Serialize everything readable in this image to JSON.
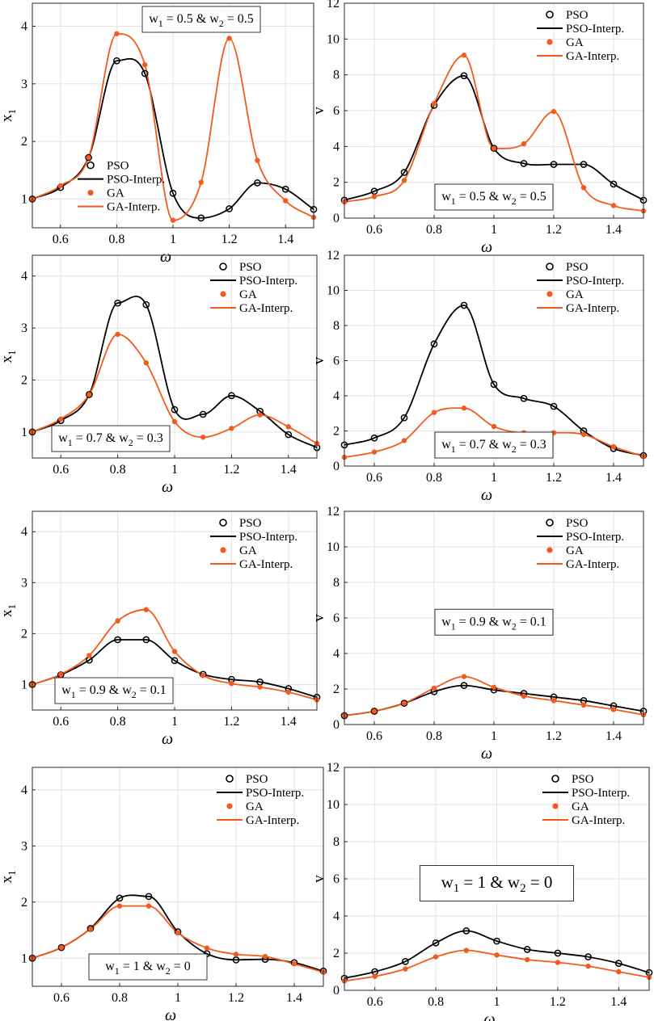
{
  "figure": {
    "colors": {
      "pso": "#000000",
      "ga": "#F25B1D",
      "grid": "#E3E3E3",
      "axis": "#262626"
    },
    "axis_label_x": "ω",
    "axis_label_x1": "x",
    "axis_label_x1_sub": "1",
    "axis_label_v": "v"
  },
  "chart_data": [
    {
      "type": "line",
      "ylabel": "x1",
      "xlabel": "ω",
      "xlim": [
        0.5,
        1.5
      ],
      "ylim": [
        0.5,
        4.4
      ],
      "xticks": [
        "0.6",
        "0.8",
        "1",
        "1.2",
        "1.4"
      ],
      "yticks": [
        "1",
        "2",
        "3",
        "4"
      ],
      "annotation": {
        "parts": [
          "w",
          "1",
          " = 0.5 & w",
          "2",
          " = 0.5"
        ],
        "position": "top-center"
      },
      "legend": {
        "position": "center-left",
        "entries": [
          "PSO",
          "PSO-Interp.",
          "GA",
          "GA-Interp."
        ]
      },
      "x": [
        0.5,
        0.6,
        0.7,
        0.8,
        0.9,
        1.0,
        1.1,
        1.2,
        1.3,
        1.4,
        1.5
      ],
      "series": [
        {
          "name": "PSO",
          "values": [
            1.0,
            1.2,
            1.72,
            3.4,
            3.18,
            1.1,
            0.67,
            0.83,
            1.28,
            1.17,
            0.82
          ]
        },
        {
          "name": "GA",
          "values": [
            1.0,
            1.23,
            1.72,
            3.87,
            3.33,
            0.63,
            1.29,
            3.79,
            1.67,
            0.97,
            0.68
          ]
        }
      ]
    },
    {
      "type": "line",
      "ylabel": "v",
      "xlabel": "ω",
      "xlim": [
        0.5,
        1.5
      ],
      "ylim": [
        0,
        12
      ],
      "xticks": [
        "0.6",
        "0.8",
        "1",
        "1.2",
        "1.4"
      ],
      "yticks": [
        "0",
        "2",
        "4",
        "6",
        "8",
        "10",
        "12"
      ],
      "annotation": {
        "parts": [
          "w",
          "1",
          " = 0.5 & w",
          "2",
          " = 0.5"
        ],
        "position": "bottom-center"
      },
      "legend": {
        "position": "top-right",
        "entries": [
          "PSO",
          "PSO-Interp.",
          "GA",
          "GA-Interp."
        ]
      },
      "x": [
        0.5,
        0.6,
        0.7,
        0.8,
        0.9,
        1.0,
        1.1,
        1.2,
        1.3,
        1.4,
        1.5
      ],
      "series": [
        {
          "name": "PSO",
          "values": [
            1.0,
            1.5,
            2.55,
            6.3,
            7.95,
            3.9,
            3.05,
            3.0,
            3.0,
            1.9,
            1.0
          ]
        },
        {
          "name": "GA",
          "values": [
            0.9,
            1.2,
            2.1,
            6.4,
            9.1,
            3.9,
            4.15,
            5.95,
            1.7,
            0.7,
            0.4
          ]
        }
      ]
    },
    {
      "type": "line",
      "ylabel": "x1",
      "xlabel": "ω",
      "xlim": [
        0.5,
        1.5
      ],
      "ylim": [
        0.5,
        4.4
      ],
      "xticks": [
        "0.6",
        "0.8",
        "1",
        "1.2",
        "1.4"
      ],
      "yticks": [
        "1",
        "2",
        "3",
        "4"
      ],
      "annotation": {
        "parts": [
          "w",
          "1",
          " = 0.7 & w",
          "2",
          " = 0.3"
        ],
        "position": "bottom-left"
      },
      "legend": {
        "position": "top-right",
        "entries": [
          "PSO",
          "PSO-Interp.",
          "GA",
          "GA-Interp."
        ]
      },
      "x": [
        0.5,
        0.6,
        0.7,
        0.8,
        0.9,
        1.0,
        1.1,
        1.2,
        1.3,
        1.4,
        1.5
      ],
      "series": [
        {
          "name": "PSO",
          "values": [
            1.0,
            1.22,
            1.72,
            3.48,
            3.45,
            1.43,
            1.34,
            1.7,
            1.4,
            0.95,
            0.7
          ]
        },
        {
          "name": "GA",
          "values": [
            1.0,
            1.25,
            1.72,
            2.88,
            2.33,
            1.2,
            0.9,
            1.07,
            1.33,
            1.1,
            0.78
          ]
        }
      ]
    },
    {
      "type": "line",
      "ylabel": "v",
      "xlabel": "ω",
      "xlim": [
        0.5,
        1.5
      ],
      "ylim": [
        0,
        12
      ],
      "xticks": [
        "0.6",
        "0.8",
        "1",
        "1.2",
        "1.4"
      ],
      "yticks": [
        "0",
        "2",
        "4",
        "6",
        "8",
        "10",
        "12"
      ],
      "annotation": {
        "parts": [
          "w",
          "1",
          " = 0.7 & w",
          "2",
          " = 0.3"
        ],
        "position": "bottom-center"
      },
      "legend": {
        "position": "top-right",
        "entries": [
          "PSO",
          "PSO-Interp.",
          "GA",
          "GA-Interp."
        ]
      },
      "x": [
        0.5,
        0.6,
        0.7,
        0.8,
        0.9,
        1.0,
        1.1,
        1.2,
        1.3,
        1.4,
        1.5
      ],
      "series": [
        {
          "name": "PSO",
          "values": [
            1.2,
            1.6,
            2.75,
            6.95,
            9.15,
            4.65,
            3.85,
            3.4,
            2.0,
            1.0,
            0.6
          ]
        },
        {
          "name": "GA",
          "values": [
            0.5,
            0.8,
            1.45,
            3.05,
            3.3,
            2.25,
            1.9,
            1.9,
            1.8,
            1.1,
            0.55
          ]
        }
      ]
    },
    {
      "type": "line",
      "ylabel": "x1",
      "xlabel": "ω",
      "xlim": [
        0.5,
        1.5
      ],
      "ylim": [
        0.5,
        4.4
      ],
      "xticks": [
        "0.6",
        "0.8",
        "1",
        "1.2",
        "1.4"
      ],
      "yticks": [
        "1",
        "2",
        "3",
        "4"
      ],
      "annotation": {
        "parts": [
          "w",
          "1",
          " = 0.9 & w",
          "2",
          " = 0.1"
        ],
        "position": "bottom-left"
      },
      "legend": {
        "position": "top-right",
        "entries": [
          "PSO",
          "PSO-Interp.",
          "GA",
          "GA-Interp."
        ]
      },
      "x": [
        0.5,
        0.6,
        0.7,
        0.8,
        0.9,
        1.0,
        1.1,
        1.2,
        1.3,
        1.4,
        1.5
      ],
      "series": [
        {
          "name": "PSO",
          "values": [
            1.0,
            1.19,
            1.48,
            1.88,
            1.88,
            1.47,
            1.2,
            1.1,
            1.05,
            0.92,
            0.75
          ]
        },
        {
          "name": "GA",
          "values": [
            1.0,
            1.2,
            1.57,
            2.25,
            2.47,
            1.65,
            1.18,
            1.02,
            0.95,
            0.85,
            0.7
          ]
        }
      ]
    },
    {
      "type": "line",
      "ylabel": "v",
      "xlabel": "ω",
      "xlim": [
        0.5,
        1.5
      ],
      "ylim": [
        0,
        12
      ],
      "xticks": [
        "0.6",
        "0.8",
        "1",
        "1.2",
        "1.4"
      ],
      "yticks": [
        "0",
        "2",
        "4",
        "6",
        "8",
        "10",
        "12"
      ],
      "annotation": {
        "parts": [
          "w",
          "1",
          " = 0.9 & w",
          "2",
          " = 0.1"
        ],
        "position": "center"
      },
      "legend": {
        "position": "top-right",
        "entries": [
          "PSO",
          "PSO-Interp.",
          "GA",
          "GA-Interp."
        ]
      },
      "x": [
        0.5,
        0.6,
        0.7,
        0.8,
        0.9,
        1.0,
        1.1,
        1.2,
        1.3,
        1.4,
        1.5
      ],
      "series": [
        {
          "name": "PSO",
          "values": [
            0.5,
            0.75,
            1.2,
            1.85,
            2.2,
            1.95,
            1.75,
            1.55,
            1.35,
            1.05,
            0.75
          ]
        },
        {
          "name": "GA",
          "values": [
            0.5,
            0.75,
            1.2,
            2.05,
            2.7,
            2.1,
            1.6,
            1.35,
            1.1,
            0.85,
            0.55
          ]
        }
      ]
    },
    {
      "type": "line",
      "ylabel": "x1",
      "xlabel": "ω",
      "xlim": [
        0.5,
        1.5
      ],
      "ylim": [
        0.5,
        4.4
      ],
      "xticks": [
        "0.6",
        "0.8",
        "1",
        "1.2",
        "1.4"
      ],
      "yticks": [
        "1",
        "2",
        "3",
        "4"
      ],
      "annotation": {
        "parts": [
          "w",
          "1",
          " = 1 & w",
          "2",
          " = 0"
        ],
        "position": "bottom-left"
      },
      "legend": {
        "position": "top-right",
        "entries": [
          "PSO",
          "PSO-Interp.",
          "GA",
          "GA-Interp."
        ]
      },
      "x": [
        0.5,
        0.6,
        0.7,
        0.8,
        0.9,
        1.0,
        1.1,
        1.2,
        1.3,
        1.4,
        1.5
      ],
      "series": [
        {
          "name": "PSO",
          "values": [
            1.0,
            1.19,
            1.53,
            2.07,
            2.1,
            1.47,
            1.08,
            0.97,
            0.98,
            0.92,
            0.77
          ]
        },
        {
          "name": "GA",
          "values": [
            1.0,
            1.19,
            1.52,
            1.93,
            1.93,
            1.45,
            1.18,
            1.07,
            1.03,
            0.9,
            0.75
          ]
        }
      ]
    },
    {
      "type": "line",
      "ylabel": "v",
      "xlabel": "ω",
      "xlim": [
        0.5,
        1.5
      ],
      "ylim": [
        0,
        12
      ],
      "xticks": [
        "0.6",
        "0.8",
        "1",
        "1.2",
        "1.4"
      ],
      "yticks": [
        "0",
        "2",
        "4",
        "6",
        "8",
        "10",
        "12"
      ],
      "annotation": {
        "parts": [
          "w",
          "1",
          " = 1 & w",
          "2",
          " = 0"
        ],
        "position": "center"
      },
      "legend": {
        "position": "top-right",
        "entries": [
          "PSO",
          "PSO-Interp.",
          "GA",
          "GA-Interp."
        ]
      },
      "x": [
        0.5,
        0.6,
        0.7,
        0.8,
        0.9,
        1.0,
        1.1,
        1.2,
        1.3,
        1.4,
        1.5
      ],
      "series": [
        {
          "name": "PSO",
          "values": [
            0.65,
            1.0,
            1.55,
            2.55,
            3.2,
            2.65,
            2.2,
            2.0,
            1.8,
            1.45,
            0.95
          ]
        },
        {
          "name": "GA",
          "values": [
            0.5,
            0.75,
            1.15,
            1.8,
            2.15,
            1.9,
            1.65,
            1.5,
            1.3,
            1.0,
            0.7
          ]
        }
      ]
    }
  ]
}
